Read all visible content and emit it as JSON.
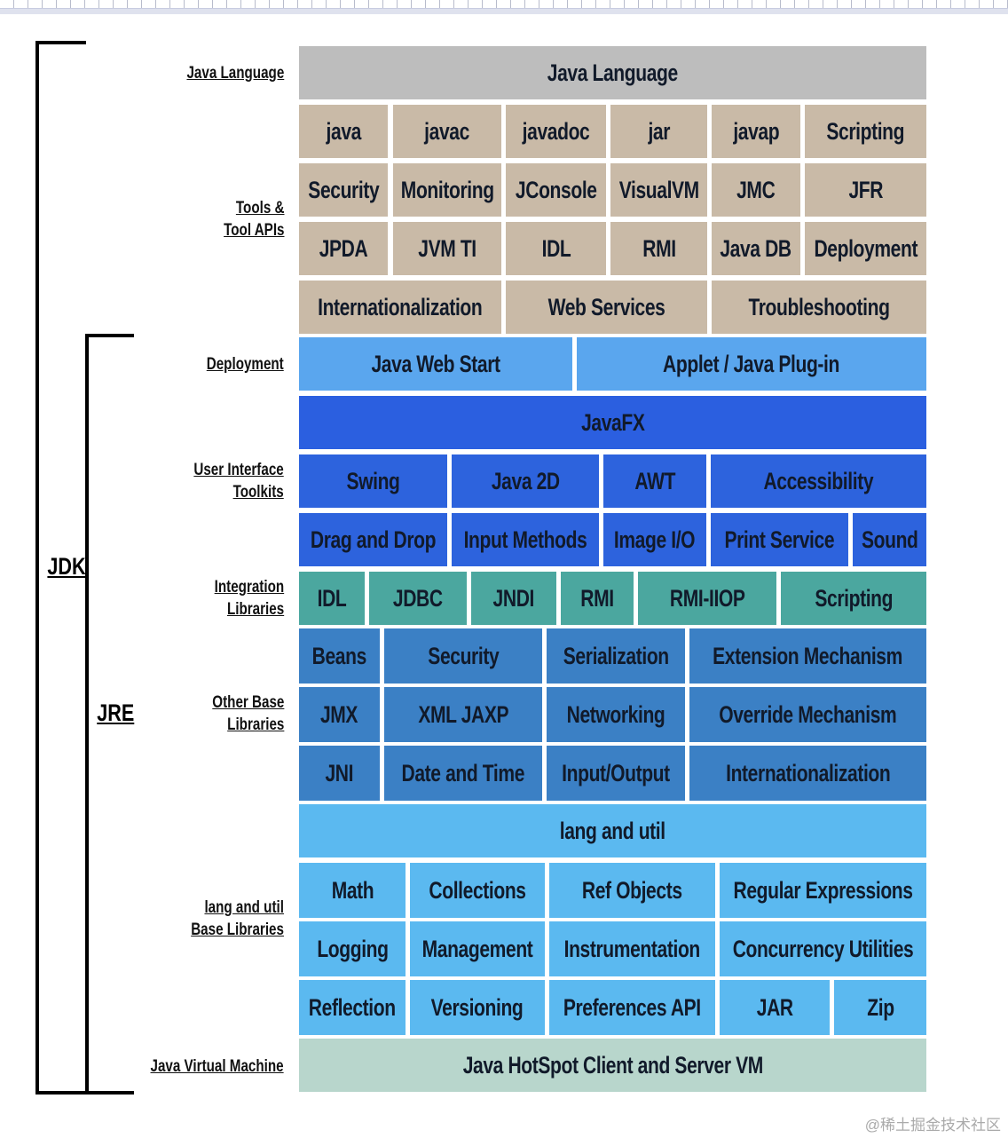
{
  "brackets": {
    "jdk": "JDK",
    "jre": "JRE"
  },
  "side_labels": [
    [
      "Java Language"
    ],
    [
      "Tools &",
      "Tool APIs"
    ],
    [
      "Deployment"
    ],
    [
      "User Interface",
      "Toolkits"
    ],
    [
      "Integration",
      "Libraries"
    ],
    [
      "Other Base",
      "Libraries"
    ],
    [
      "lang and util",
      "Base Libraries"
    ],
    [
      "Java Virtual Machine"
    ]
  ],
  "colors": {
    "language": "#bdbdbd",
    "tools": "#c9baa7",
    "deployment": "#5aa6ee",
    "javafx": "#2b5fe0",
    "ui": "#2d63dd",
    "integration": "#4ba79f",
    "otherbase": "#3b80c5",
    "langutil": "#5bb9f0",
    "vm": "#b8d6cc"
  },
  "rows": [
    {
      "group": "language",
      "cells": [
        "Java Language"
      ]
    },
    {
      "group": "tools",
      "cells": [
        "java",
        "javac",
        "javadoc",
        "jar",
        "javap",
        "Scripting"
      ]
    },
    {
      "group": "tools",
      "cells": [
        "Security",
        "Monitoring",
        "JConsole",
        "VisualVM",
        "JMC",
        "JFR"
      ]
    },
    {
      "group": "tools",
      "cells": [
        "JPDA",
        "JVM TI",
        "IDL",
        "RMI",
        "Java DB",
        "Deployment"
      ]
    },
    {
      "group": "tools",
      "cells": [
        "Internationalization",
        "Web Services",
        "Troubleshooting"
      ]
    },
    {
      "group": "deployment",
      "cells": [
        "Java Web Start",
        "Applet / Java Plug-in"
      ]
    },
    {
      "group": "javafx",
      "cells": [
        "JavaFX"
      ]
    },
    {
      "group": "ui",
      "cells": [
        "Swing",
        "Java 2D",
        "AWT",
        "Accessibility"
      ]
    },
    {
      "group": "ui",
      "cells": [
        "Drag and Drop",
        "Input Methods",
        "Image I/O",
        "Print Service",
        "Sound"
      ]
    },
    {
      "group": "integration",
      "cells": [
        "IDL",
        "JDBC",
        "JNDI",
        "RMI",
        "RMI-IIOP",
        "Scripting"
      ]
    },
    {
      "group": "otherbase",
      "cells": [
        "Beans",
        "Security",
        "Serialization",
        "Extension Mechanism"
      ]
    },
    {
      "group": "otherbase",
      "cells": [
        "JMX",
        "XML JAXP",
        "Networking",
        "Override Mechanism"
      ]
    },
    {
      "group": "otherbase",
      "cells": [
        "JNI",
        "Date and Time",
        "Input/Output",
        "Internationalization"
      ]
    },
    {
      "group": "langutil",
      "cells": [
        "lang and util"
      ]
    },
    {
      "group": "langutil",
      "cells": [
        "Math",
        "Collections",
        "Ref Objects",
        "Regular Expressions"
      ]
    },
    {
      "group": "langutil",
      "cells": [
        "Logging",
        "Management",
        "Instrumentation",
        "Concurrency Utilities"
      ]
    },
    {
      "group": "langutil",
      "cells": [
        "Reflection",
        "Versioning",
        "Preferences API",
        "JAR",
        "Zip"
      ]
    },
    {
      "group": "vm",
      "cells": [
        "Java HotSpot Client and Server VM"
      ]
    }
  ],
  "watermark": "@稀土掘金技术社区"
}
